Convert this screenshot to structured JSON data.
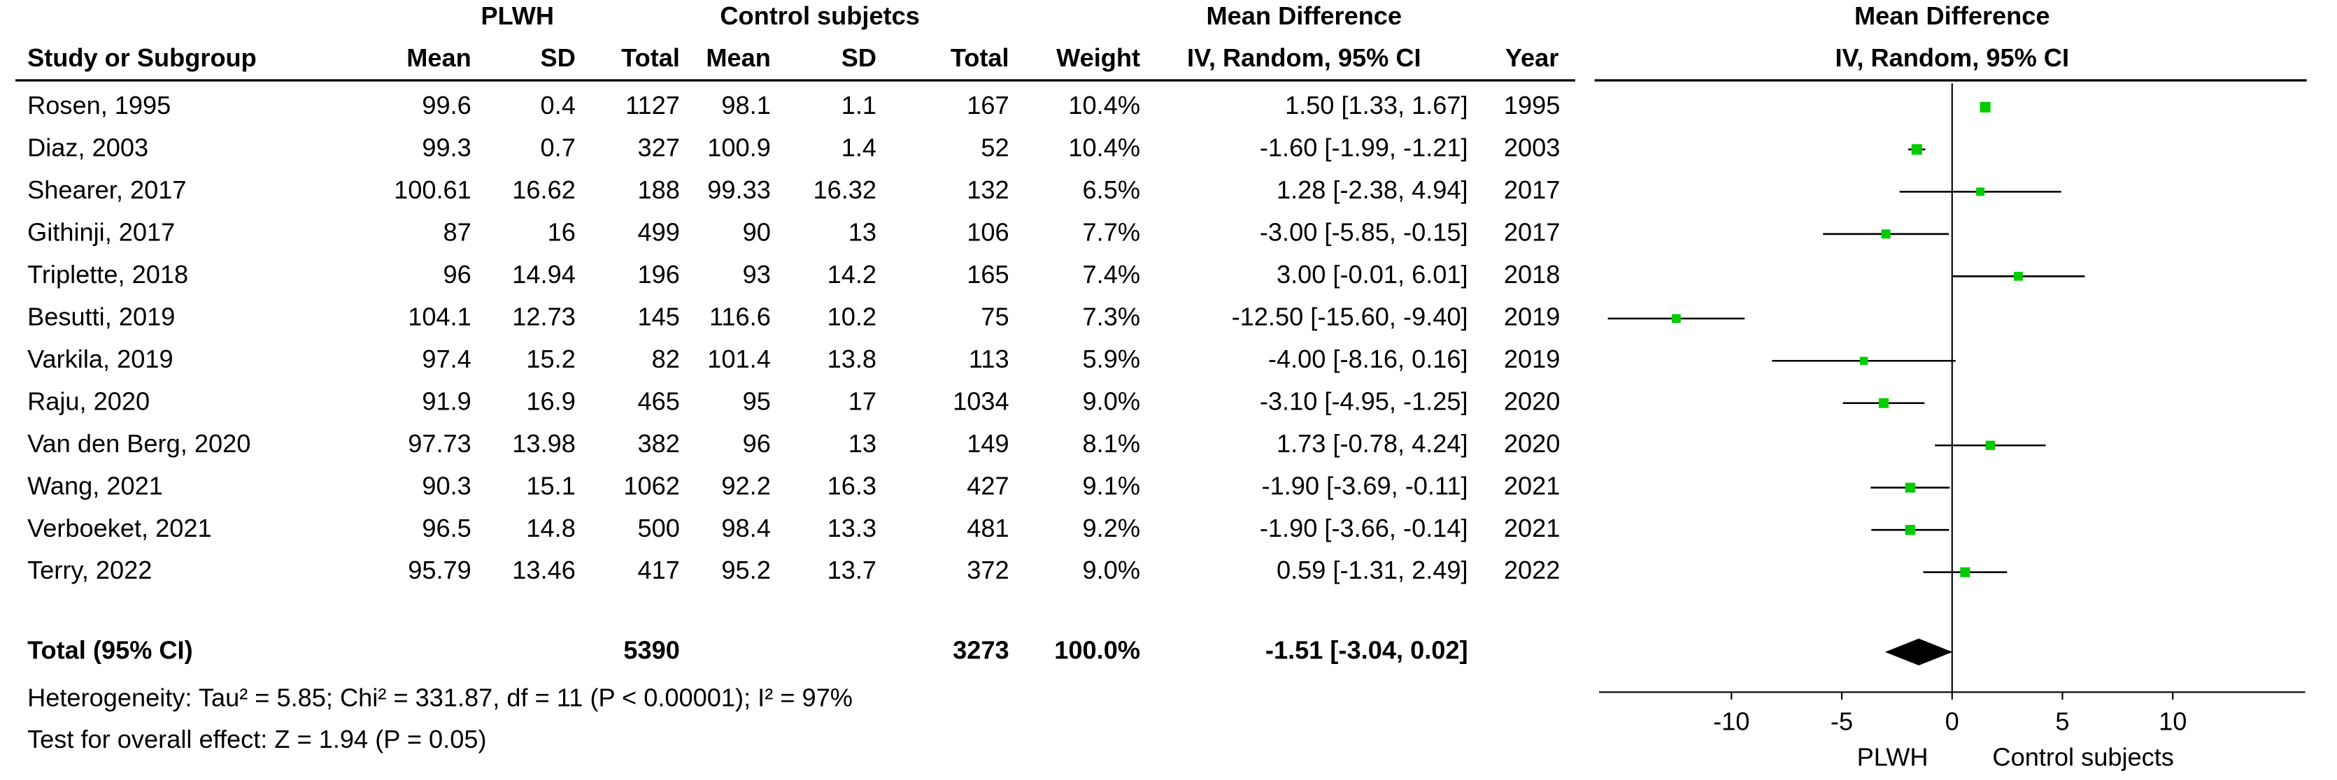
{
  "chart_data": {
    "type": "forest",
    "header": {
      "group_plwh": "PLWH",
      "group_control": "Control subjetcs",
      "group_md": "Mean Difference",
      "plot_title": "Mean Difference",
      "plot_subtitle": "IV, Random, 95% CI",
      "columns": [
        "Study or Subgroup",
        "Mean",
        "SD",
        "Total",
        "Mean",
        "SD",
        "Total",
        "Weight",
        "IV, Random, 95% CI",
        "Year"
      ]
    },
    "studies": [
      {
        "cells": [
          "Rosen, 1995",
          "99.6",
          "0.4",
          "1127",
          "98.1",
          "1.1",
          "167",
          "10.4%",
          "1.50 [1.33, 1.67]",
          "1995"
        ],
        "md": 1.5,
        "ci_low": 1.33,
        "ci_high": 1.67,
        "weight": 10.4
      },
      {
        "cells": [
          "Diaz, 2003",
          "99.3",
          "0.7",
          "327",
          "100.9",
          "1.4",
          "52",
          "10.4%",
          "-1.60 [-1.99, -1.21]",
          "2003"
        ],
        "md": -1.6,
        "ci_low": -1.99,
        "ci_high": -1.21,
        "weight": 10.4
      },
      {
        "cells": [
          "Shearer, 2017",
          "100.61",
          "16.62",
          "188",
          "99.33",
          "16.32",
          "132",
          "6.5%",
          "1.28 [-2.38, 4.94]",
          "2017"
        ],
        "md": 1.28,
        "ci_low": -2.38,
        "ci_high": 4.94,
        "weight": 6.5
      },
      {
        "cells": [
          "Githinji, 2017",
          "87",
          "16",
          "499",
          "90",
          "13",
          "106",
          "7.7%",
          "-3.00 [-5.85, -0.15]",
          "2017"
        ],
        "md": -3.0,
        "ci_low": -5.85,
        "ci_high": -0.15,
        "weight": 7.7
      },
      {
        "cells": [
          "Triplette, 2018",
          "96",
          "14.94",
          "196",
          "93",
          "14.2",
          "165",
          "7.4%",
          "3.00 [-0.01, 6.01]",
          "2018"
        ],
        "md": 3.0,
        "ci_low": -0.01,
        "ci_high": 6.01,
        "weight": 7.4
      },
      {
        "cells": [
          "Besutti, 2019",
          "104.1",
          "12.73",
          "145",
          "116.6",
          "10.2",
          "75",
          "7.3%",
          "-12.50 [-15.60, -9.40]",
          "2019"
        ],
        "md": -12.5,
        "ci_low": -15.6,
        "ci_high": -9.4,
        "weight": 7.3
      },
      {
        "cells": [
          "Varkila, 2019",
          "97.4",
          "15.2",
          "82",
          "101.4",
          "13.8",
          "113",
          "5.9%",
          "-4.00 [-8.16, 0.16]",
          "2019"
        ],
        "md": -4.0,
        "ci_low": -8.16,
        "ci_high": 0.16,
        "weight": 5.9
      },
      {
        "cells": [
          "Raju, 2020",
          "91.9",
          "16.9",
          "465",
          "95",
          "17",
          "1034",
          "9.0%",
          "-3.10 [-4.95, -1.25]",
          "2020"
        ],
        "md": -3.1,
        "ci_low": -4.95,
        "ci_high": -1.25,
        "weight": 9.0
      },
      {
        "cells": [
          "Van den Berg, 2020",
          "97.73",
          "13.98",
          "382",
          "96",
          "13",
          "149",
          "8.1%",
          "1.73 [-0.78, 4.24]",
          "2020"
        ],
        "md": 1.73,
        "ci_low": -0.78,
        "ci_high": 4.24,
        "weight": 8.1
      },
      {
        "cells": [
          "Wang, 2021",
          "90.3",
          "15.1",
          "1062",
          "92.2",
          "16.3",
          "427",
          "9.1%",
          "-1.90 [-3.69, -0.11]",
          "2021"
        ],
        "md": -1.9,
        "ci_low": -3.69,
        "ci_high": -0.11,
        "weight": 9.1
      },
      {
        "cells": [
          "Verboeket, 2021",
          "96.5",
          "14.8",
          "500",
          "98.4",
          "13.3",
          "481",
          "9.2%",
          "-1.90 [-3.66, -0.14]",
          "2021"
        ],
        "md": -1.9,
        "ci_low": -3.66,
        "ci_high": -0.14,
        "weight": 9.2
      },
      {
        "cells": [
          "Terry, 2022",
          "95.79",
          "13.46",
          "417",
          "95.2",
          "13.7",
          "372",
          "9.0%",
          "0.59 [-1.31, 2.49]",
          "2022"
        ],
        "md": 0.59,
        "ci_low": -1.31,
        "ci_high": 2.49,
        "weight": 9.0
      }
    ],
    "total": {
      "label": "Total (95% CI)",
      "plwh_total": "5390",
      "control_total": "3273",
      "weight": "100.0%",
      "md_label": "-1.51 [-3.04, 0.02]",
      "md": -1.51,
      "ci_low": -3.04,
      "ci_high": 0.02
    },
    "heterogeneity": "Heterogeneity: Tau² = 5.85; Chi² = 331.87, df = 11 (P < 0.00001); I² = 97%",
    "overall_effect": "Test for overall effect: Z = 1.94 (P = 0.05)",
    "xlim": [
      -16,
      16
    ],
    "xticks": [
      -10,
      -5,
      0,
      5,
      10
    ],
    "axis_labels": [
      "PLWH",
      "Control subjects"
    ],
    "color": "#00cc00"
  }
}
